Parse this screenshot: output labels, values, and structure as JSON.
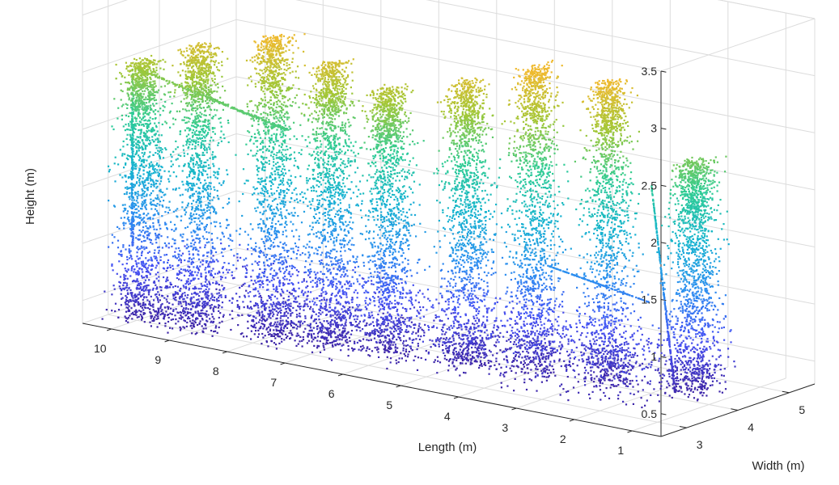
{
  "chart_data": {
    "type": "scatter3d",
    "title": "",
    "xlabel": "Length (m)",
    "ylabel": "Width (m)",
    "zlabel": "Height (m)",
    "xlim": [
      0.5,
      10.5
    ],
    "ylim": [
      2.5,
      5.5
    ],
    "zlim": [
      0.3,
      3.5
    ],
    "x_ticks": [
      "1",
      "2",
      "3",
      "4",
      "5",
      "6",
      "7",
      "8",
      "9",
      "10"
    ],
    "y_ticks": [
      "3",
      "4",
      "5"
    ],
    "z_ticks": [
      "0.5",
      "1",
      "1.5",
      "2",
      "2.5",
      "3",
      "3.5"
    ],
    "grid": true,
    "colormap": "parula",
    "colormap_colors": [
      "#3e26a8",
      "#4752f4",
      "#2d8ff0",
      "#16b4cf",
      "#2fcc95",
      "#a1c737",
      "#efba2f"
    ],
    "plants": [
      {
        "x": 10.1,
        "y": 3.2,
        "top": 2.55
      },
      {
        "x": 9.2,
        "y": 3.3,
        "top": 2.75
      },
      {
        "x": 8.1,
        "y": 3.5,
        "top": 2.9
      },
      {
        "x": 7.2,
        "y": 3.6,
        "top": 2.75
      },
      {
        "x": 6.3,
        "y": 3.7,
        "top": 2.6
      },
      {
        "x": 5.1,
        "y": 3.9,
        "top": 2.75
      },
      {
        "x": 4.1,
        "y": 4.1,
        "top": 2.95
      },
      {
        "x": 3.0,
        "y": 4.3,
        "top": 2.9
      },
      {
        "x": 1.7,
        "y": 4.5,
        "top": 2.3
      }
    ]
  }
}
